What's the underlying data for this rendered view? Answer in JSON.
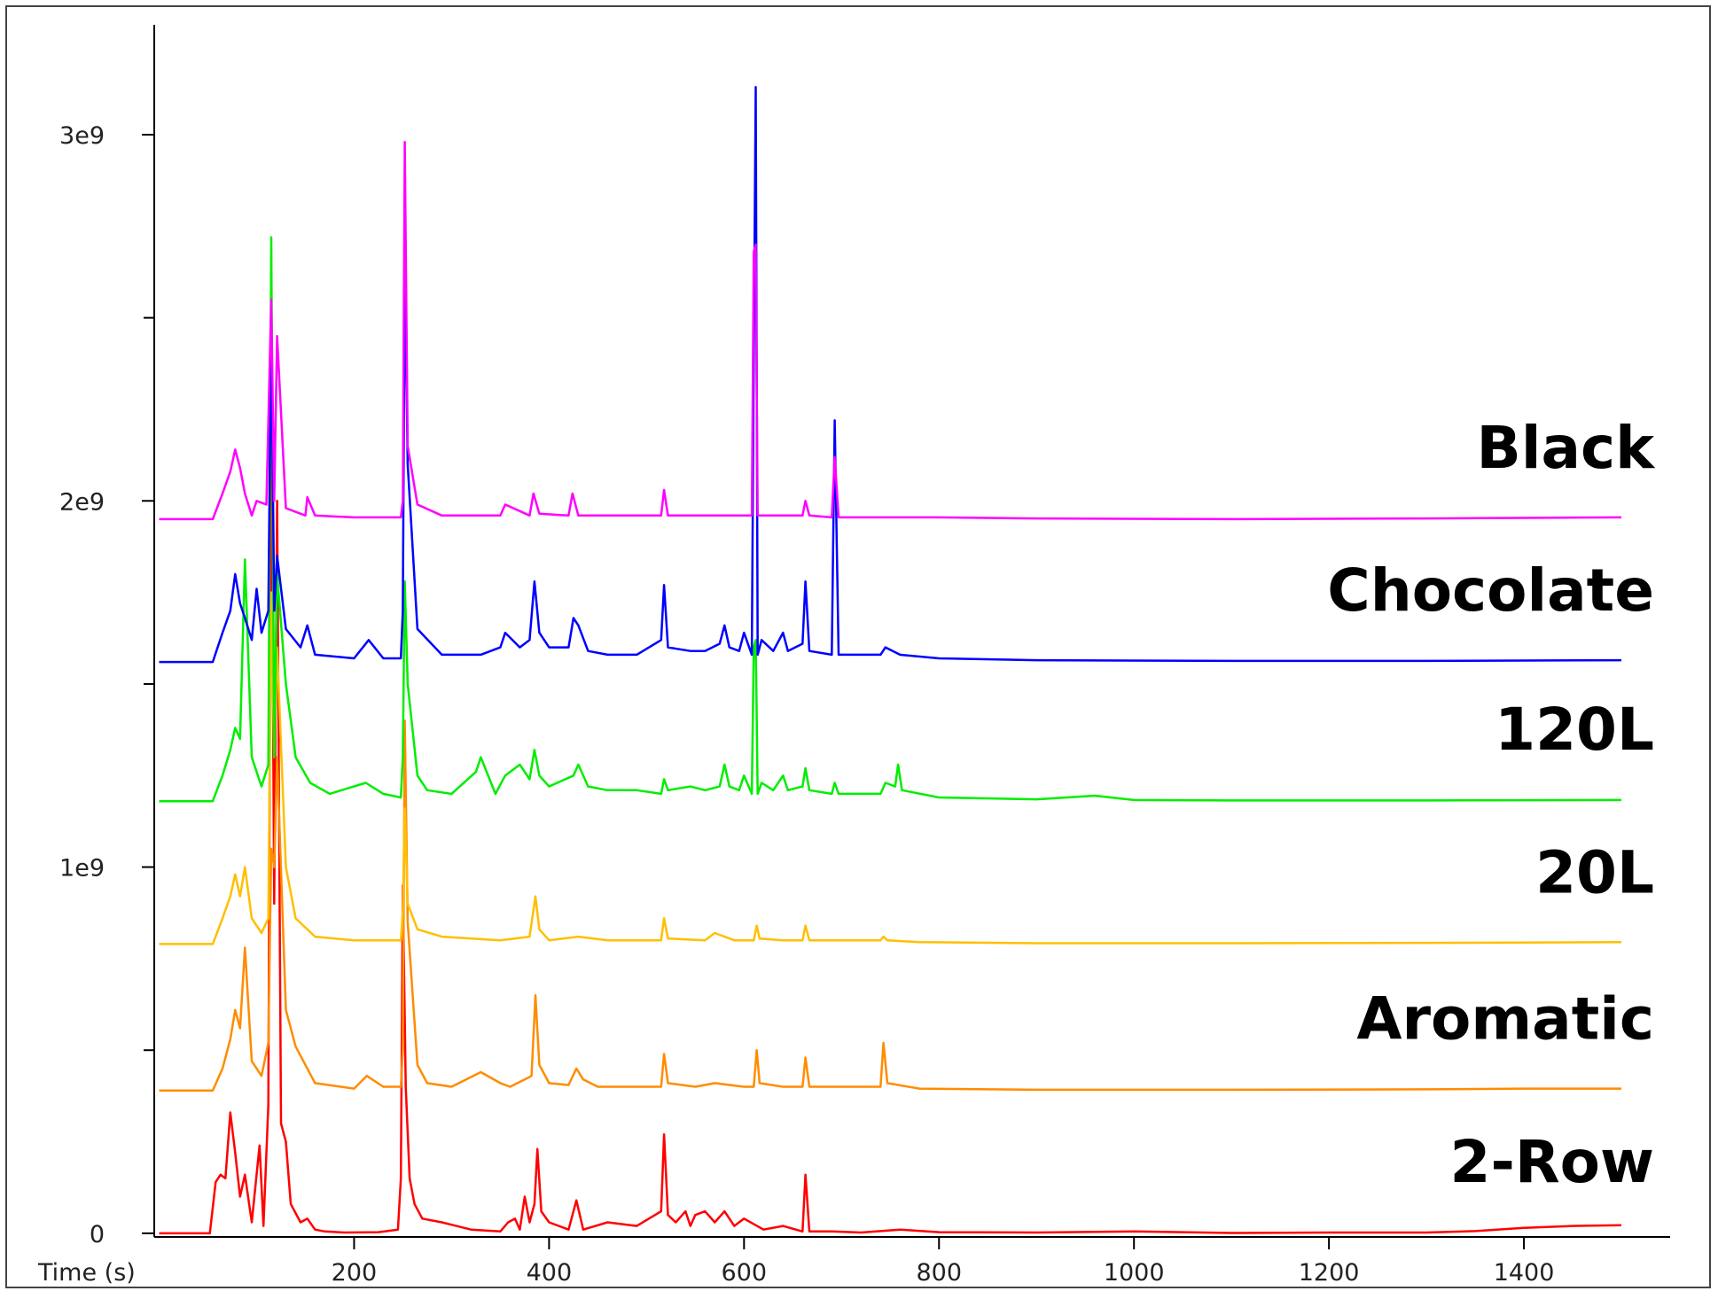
{
  "chart_data": {
    "type": "line",
    "xlabel": "Time (s)",
    "ylabel": "",
    "xlim": [
      -5,
      1590
    ],
    "ylim": [
      -10000000,
      3300000000
    ],
    "x_ticks": [
      200,
      400,
      600,
      800,
      1000,
      1200,
      1400
    ],
    "x_tick_labels": [
      "200",
      "400",
      "600",
      "800",
      "1000",
      "1200",
      "1400"
    ],
    "y_ticks": [
      0,
      1000000000,
      2000000000,
      3000000000
    ],
    "y_tick_labels": [
      "0",
      "1e9",
      "2e9",
      "3e9"
    ],
    "y_minor_ticks": [
      500000000,
      1500000000,
      2500000000
    ],
    "grid": false,
    "legend": "labels placed at right end of each trace",
    "series": [
      {
        "name": "2-Row",
        "color": "#ff0000",
        "baseline": 0,
        "x": [
          0,
          52,
          58,
          63,
          68,
          73,
          78,
          83,
          88,
          95,
          103,
          107,
          112,
          115,
          118,
          121,
          125,
          130,
          135,
          145,
          152,
          160,
          170,
          190,
          225,
          245,
          248,
          250,
          253,
          257,
          262,
          270,
          290,
          320,
          350,
          358,
          365,
          370,
          375,
          380,
          385,
          388,
          392,
          400,
          420,
          428,
          435,
          460,
          490,
          515,
          518,
          522,
          530,
          540,
          545,
          550,
          560,
          570,
          580,
          590,
          600,
          620,
          640,
          660,
          663,
          667,
          690,
          720,
          760,
          800,
          900,
          1000,
          1100,
          1200,
          1300,
          1350,
          1400,
          1450,
          1500
        ],
        "y": [
          0,
          0,
          140000000.0,
          160000000.0,
          150000000.0,
          330000000.0,
          220000000.0,
          100000000.0,
          160000000.0,
          30000000.0,
          240000000.0,
          20000000.0,
          350000000.0,
          2300000000.0,
          900000000.0,
          2000000000.0,
          300000000.0,
          250000000.0,
          80000000.0,
          30000000.0,
          40000000.0,
          10000000.0,
          5000000.0,
          2000000.0,
          3000000.0,
          10000000.0,
          150000000.0,
          950000000.0,
          400000000.0,
          150000000.0,
          80000000.0,
          40000000.0,
          30000000.0,
          10000000.0,
          5000000.0,
          30000000.0,
          40000000.0,
          10000000.0,
          100000000.0,
          30000000.0,
          80000000.0,
          230000000.0,
          60000000.0,
          30000000.0,
          10000000.0,
          90000000.0,
          10000000.0,
          30000000.0,
          20000000.0,
          60000000.0,
          270000000.0,
          50000000.0,
          30000000.0,
          60000000.0,
          20000000.0,
          50000000.0,
          60000000.0,
          30000000.0,
          60000000.0,
          20000000.0,
          40000000.0,
          10000000.0,
          20000000.0,
          5000000.0,
          160000000.0,
          5000000.0,
          5000000.0,
          2000000.0,
          10000000.0,
          3000000.0,
          2000000.0,
          5000000.0,
          1000000.0,
          2000000.0,
          2000000.0,
          6000000.0,
          15000000.0,
          20000000.0,
          22000000.0
        ]
      },
      {
        "name": "Aromatic",
        "color": "#ff8c00",
        "baseline": 390000000,
        "x": [
          0,
          55,
          65,
          73,
          78,
          83,
          88,
          95,
          105,
          112,
          115,
          118,
          121,
          130,
          140,
          160,
          200,
          213,
          230,
          248,
          250,
          252,
          255,
          265,
          275,
          300,
          330,
          350,
          360,
          375,
          382,
          386,
          390,
          400,
          420,
          428,
          435,
          450,
          480,
          515,
          518,
          522,
          550,
          570,
          600,
          610,
          613,
          616,
          640,
          660,
          663,
          667,
          700,
          740,
          743,
          747,
          780,
          900,
          1100,
          1300,
          1400,
          1500
        ],
        "y": [
          390000000,
          390000000,
          450000000,
          530000000,
          610000000,
          560000000,
          780000000,
          470000000,
          430000000,
          520000000,
          1050000000,
          1000000000,
          1300000000,
          610000000,
          510000000,
          410000000,
          395000000,
          430000000,
          400000000,
          400000000,
          500000000,
          1400000000,
          850000000,
          460000000,
          410000000,
          400000000,
          440000000,
          410000000,
          400000000,
          420000000,
          430000000,
          650000000,
          460000000,
          410000000,
          405000000,
          450000000,
          420000000,
          400000000,
          400000000,
          400000000,
          490000000,
          410000000,
          400000000,
          410000000,
          400000000,
          400000000,
          500000000,
          410000000,
          400000000,
          400000000,
          480000000,
          400000000,
          400000000,
          400000000,
          520000000,
          410000000,
          395000000,
          392000000,
          392000000,
          393000000,
          395000000,
          395000000
        ]
      },
      {
        "name": "20L",
        "color": "#ffbf00",
        "baseline": 790000000,
        "x": [
          0,
          55,
          65,
          73,
          78,
          83,
          88,
          95,
          105,
          112,
          115,
          118,
          121,
          130,
          140,
          160,
          200,
          230,
          248,
          250,
          252,
          255,
          265,
          290,
          350,
          380,
          386,
          390,
          400,
          430,
          460,
          500,
          515,
          518,
          522,
          560,
          570,
          590,
          610,
          613,
          616,
          640,
          660,
          663,
          667,
          700,
          740,
          743,
          747,
          780,
          900,
          1100,
          1300,
          1500
        ],
        "y": [
          790000000,
          790000000,
          860000000,
          920000000,
          980000000,
          920000000,
          1000000000,
          860000000,
          820000000,
          860000000,
          1750000000,
          1300000000,
          1600000000,
          1000000000,
          860000000,
          810000000,
          800000000,
          800000000,
          800000000,
          880000000,
          1160000000,
          900000000,
          830000000,
          810000000,
          800000000,
          810000000,
          920000000,
          830000000,
          800000000,
          810000000,
          800000000,
          800000000,
          800000000,
          860000000,
          805000000,
          800000000,
          820000000,
          800000000,
          800000000,
          840000000,
          805000000,
          800000000,
          800000000,
          840000000,
          800000000,
          800000000,
          800000000,
          810000000,
          800000000,
          795000000,
          792000000,
          792000000,
          793000000,
          795000000
        ]
      },
      {
        "name": "120L",
        "color": "#00ee00",
        "baseline": 1180000000,
        "x": [
          0,
          55,
          65,
          73,
          78,
          83,
          88,
          95,
          105,
          112,
          115,
          118,
          121,
          130,
          140,
          155,
          175,
          212,
          230,
          248,
          250,
          252,
          255,
          265,
          275,
          300,
          325,
          330,
          345,
          355,
          370,
          380,
          385,
          390,
          400,
          425,
          430,
          440,
          460,
          490,
          515,
          518,
          522,
          545,
          560,
          575,
          580,
          585,
          595,
          600,
          608,
          610,
          612,
          614,
          618,
          630,
          640,
          645,
          660,
          663,
          667,
          690,
          693,
          697,
          740,
          745,
          755,
          758,
          762,
          800,
          900,
          960,
          1000,
          1100,
          1300,
          1500
        ],
        "y": [
          1180000000,
          1180000000,
          1250000000,
          1320000000,
          1380000000,
          1350000000,
          1840000000,
          1300000000,
          1220000000,
          1280000000,
          2720000000,
          1300000000,
          1800000000,
          1500000000,
          1300000000,
          1230000000,
          1200000000,
          1230000000,
          1200000000,
          1190000000,
          1300000000,
          1780000000,
          1500000000,
          1250000000,
          1210000000,
          1200000000,
          1260000000,
          1300000000,
          1200000000,
          1250000000,
          1280000000,
          1240000000,
          1320000000,
          1250000000,
          1220000000,
          1250000000,
          1280000000,
          1220000000,
          1210000000,
          1210000000,
          1200000000,
          1240000000,
          1210000000,
          1220000000,
          1210000000,
          1220000000,
          1280000000,
          1220000000,
          1210000000,
          1250000000,
          1200000000,
          1600000000,
          1620000000,
          1200000000,
          1230000000,
          1210000000,
          1250000000,
          1210000000,
          1220000000,
          1270000000,
          1210000000,
          1200000000,
          1230000000,
          1200000000,
          1200000000,
          1230000000,
          1220000000,
          1280000000,
          1210000000,
          1190000000,
          1185000000,
          1195000000,
          1183000000,
          1182000000,
          1182000000,
          1183000000
        ]
      },
      {
        "name": "Chocolate",
        "color": "#0000ff",
        "baseline": 1560000000,
        "x": [
          0,
          55,
          65,
          73,
          78,
          83,
          88,
          95,
          100,
          105,
          112,
          115,
          118,
          121,
          130,
          145,
          152,
          160,
          200,
          215,
          230,
          248,
          250,
          252,
          255,
          265,
          290,
          330,
          350,
          355,
          370,
          380,
          385,
          390,
          400,
          420,
          425,
          430,
          440,
          460,
          490,
          515,
          518,
          522,
          545,
          560,
          575,
          580,
          585,
          595,
          600,
          608,
          610,
          612,
          614,
          618,
          630,
          640,
          645,
          660,
          663,
          667,
          690,
          693,
          697,
          740,
          745,
          760,
          800,
          900,
          1100,
          1300,
          1500
        ],
        "y": [
          1560000000,
          1560000000,
          1640000000,
          1700000000,
          1800000000,
          1720000000,
          1680000000,
          1620000000,
          1760000000,
          1640000000,
          1700000000,
          2500000000,
          1700000000,
          1850000000,
          1650000000,
          1600000000,
          1660000000,
          1580000000,
          1570000000,
          1620000000,
          1570000000,
          1570000000,
          1700000000,
          2650000000,
          2100000000,
          1650000000,
          1580000000,
          1580000000,
          1600000000,
          1640000000,
          1600000000,
          1620000000,
          1780000000,
          1640000000,
          1600000000,
          1600000000,
          1680000000,
          1660000000,
          1590000000,
          1580000000,
          1580000000,
          1620000000,
          1770000000,
          1600000000,
          1590000000,
          1590000000,
          1610000000,
          1660000000,
          1600000000,
          1590000000,
          1640000000,
          1580000000,
          2400000000,
          3130000000,
          1580000000,
          1620000000,
          1590000000,
          1640000000,
          1590000000,
          1610000000,
          1780000000,
          1590000000,
          1580000000,
          2220000000,
          1580000000,
          1580000000,
          1600000000,
          1580000000,
          1570000000,
          1565000000,
          1563000000,
          1563000000,
          1565000000
        ]
      },
      {
        "name": "Black",
        "color": "#ff00ff",
        "baseline": 1950000000,
        "x": [
          0,
          55,
          65,
          73,
          78,
          83,
          88,
          95,
          100,
          110,
          115,
          118,
          121,
          130,
          150,
          152,
          160,
          200,
          230,
          248,
          250,
          252,
          255,
          265,
          290,
          350,
          355,
          380,
          384,
          390,
          420,
          424,
          430,
          490,
          515,
          518,
          522,
          580,
          600,
          608,
          610,
          612,
          614,
          618,
          660,
          663,
          667,
          690,
          693,
          697,
          740,
          800,
          900,
          1100,
          1300,
          1500
        ],
        "y": [
          1950000000,
          1950000000,
          2020000000,
          2080000000,
          2140000000,
          2090000000,
          2020000000,
          1960000000,
          2000000000,
          1990000000,
          2550000000,
          2000000000,
          2450000000,
          1980000000,
          1960000000,
          2010000000,
          1960000000,
          1955000000,
          1955000000,
          1955000000,
          2000000000,
          2980000000,
          2150000000,
          1990000000,
          1960000000,
          1960000000,
          1990000000,
          1960000000,
          2020000000,
          1965000000,
          1960000000,
          2020000000,
          1960000000,
          1960000000,
          1960000000,
          2030000000,
          1960000000,
          1960000000,
          1960000000,
          1960000000,
          2680000000,
          2700000000,
          1960000000,
          1960000000,
          1960000000,
          2000000000,
          1960000000,
          1955000000,
          2120000000,
          1955000000,
          1955000000,
          1955000000,
          1952000000,
          1950000000,
          1952000000,
          1955000000
        ]
      }
    ]
  }
}
